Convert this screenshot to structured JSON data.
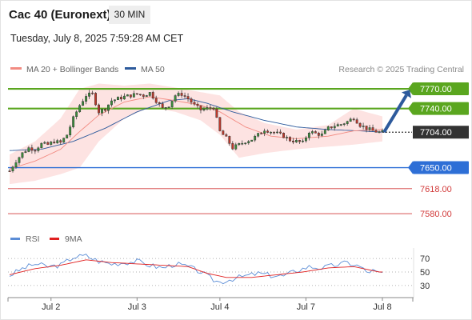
{
  "header": {
    "instrument": "Cac 40 (Euronext)",
    "timeframe": "30 MIN",
    "datetime": "Tuesday, July 8, 2025 7:59:28 AM CET"
  },
  "legend": {
    "items": [
      {
        "label": "MA 20 + Bollinger Bands",
        "color": "#f28b82"
      },
      {
        "label": "MA 50",
        "color": "#2d5a9c"
      }
    ],
    "credit": "Research © 2025 Trading Central"
  },
  "chart_data": [
    {
      "type": "candlestick",
      "y_range": [
        7552,
        7792
      ],
      "x_labels": [
        "Jul 2",
        "Jul 3",
        "Jul 4",
        "Jul 7",
        "Jul 8"
      ],
      "current_price": {
        "value": 7704,
        "label": "7704.00"
      },
      "levels": [
        {
          "value": 7770,
          "label": "7770.00",
          "kind": "resistance",
          "color": "#5aa61f"
        },
        {
          "value": 7740,
          "label": "7740.00",
          "kind": "resistance",
          "color": "#5aa61f"
        },
        {
          "value": 7650,
          "label": "7650.00",
          "kind": "pivot",
          "color": "#2e6fd6"
        },
        {
          "value": 7618,
          "label": "7618.00",
          "kind": "support",
          "color": "#d23b3b"
        },
        {
          "value": 7580,
          "label": "7580.00",
          "kind": "support",
          "color": "#d23b3b"
        }
      ],
      "forecast_arrow": {
        "from": 7704,
        "to": 7770,
        "color": "#2d5a9c"
      },
      "close_path": [
        [
          0,
          7645
        ],
        [
          2,
          7660
        ],
        [
          4,
          7672
        ],
        [
          6,
          7680
        ],
        [
          8,
          7678
        ],
        [
          10,
          7686
        ],
        [
          12,
          7685
        ],
        [
          14,
          7690
        ],
        [
          16,
          7688
        ],
        [
          18,
          7700
        ],
        [
          20,
          7725
        ],
        [
          22,
          7745
        ],
        [
          24,
          7760
        ],
        [
          26,
          7762
        ],
        [
          28,
          7735
        ],
        [
          30,
          7740
        ],
        [
          32,
          7752
        ],
        [
          34,
          7755
        ],
        [
          36,
          7758
        ],
        [
          38,
          7760
        ],
        [
          40,
          7762
        ],
        [
          42,
          7760
        ],
        [
          44,
          7764
        ],
        [
          46,
          7752
        ],
        [
          48,
          7740
        ],
        [
          50,
          7745
        ],
        [
          52,
          7760
        ],
        [
          54,
          7762
        ],
        [
          56,
          7755
        ],
        [
          58,
          7745
        ],
        [
          60,
          7738
        ],
        [
          62,
          7740
        ],
        [
          64,
          7742
        ],
        [
          66,
          7705
        ],
        [
          68,
          7695
        ],
        [
          70,
          7680
        ],
        [
          72,
          7685
        ],
        [
          74,
          7690
        ],
        [
          76,
          7693
        ],
        [
          78,
          7700
        ],
        [
          80,
          7708
        ],
        [
          82,
          7705
        ],
        [
          84,
          7702
        ],
        [
          86,
          7698
        ],
        [
          88,
          7692
        ],
        [
          90,
          7690
        ],
        [
          92,
          7688
        ],
        [
          94,
          7705
        ],
        [
          96,
          7702
        ],
        [
          98,
          7700
        ],
        [
          100,
          7710
        ],
        [
          102,
          7714
        ],
        [
          104,
          7716
        ],
        [
          106,
          7720
        ],
        [
          108,
          7726
        ],
        [
          110,
          7715
        ],
        [
          112,
          7710
        ],
        [
          114,
          7706
        ],
        [
          116,
          7704
        ]
      ],
      "bars": 118,
      "ma50": [
        [
          0,
          7676
        ],
        [
          10,
          7678
        ],
        [
          20,
          7690
        ],
        [
          30,
          7710
        ],
        [
          40,
          7735
        ],
        [
          50,
          7752
        ],
        [
          56,
          7755
        ],
        [
          62,
          7748
        ],
        [
          70,
          7735
        ],
        [
          80,
          7722
        ],
        [
          90,
          7712
        ],
        [
          100,
          7708
        ],
        [
          110,
          7706
        ],
        [
          117,
          7704
        ]
      ],
      "ma20": [
        [
          0,
          7648
        ],
        [
          8,
          7660
        ],
        [
          16,
          7678
        ],
        [
          22,
          7705
        ],
        [
          28,
          7730
        ],
        [
          36,
          7750
        ],
        [
          44,
          7758
        ],
        [
          52,
          7752
        ],
        [
          60,
          7745
        ],
        [
          66,
          7735
        ],
        [
          74,
          7712
        ],
        [
          82,
          7698
        ],
        [
          90,
          7694
        ],
        [
          100,
          7698
        ],
        [
          108,
          7706
        ],
        [
          117,
          7708
        ]
      ],
      "boll_upper": [
        [
          0,
          7670
        ],
        [
          8,
          7690
        ],
        [
          16,
          7725
        ],
        [
          22,
          7770
        ],
        [
          28,
          7778
        ],
        [
          36,
          7775
        ],
        [
          44,
          7778
        ],
        [
          52,
          7772
        ],
        [
          60,
          7765
        ],
        [
          66,
          7760
        ],
        [
          72,
          7735
        ],
        [
          80,
          7718
        ],
        [
          90,
          7708
        ],
        [
          100,
          7715
        ],
        [
          108,
          7740
        ],
        [
          117,
          7728
        ]
      ],
      "boll_lower": [
        [
          0,
          7625
        ],
        [
          8,
          7630
        ],
        [
          16,
          7640
        ],
        [
          22,
          7650
        ],
        [
          28,
          7690
        ],
        [
          36,
          7725
        ],
        [
          44,
          7742
        ],
        [
          52,
          7735
        ],
        [
          60,
          7722
        ],
        [
          66,
          7700
        ],
        [
          72,
          7665
        ],
        [
          80,
          7672
        ],
        [
          90,
          7678
        ],
        [
          100,
          7682
        ],
        [
          108,
          7685
        ],
        [
          117,
          7690
        ]
      ]
    },
    {
      "type": "line",
      "panel": "oscillator",
      "y_range": [
        18,
        82
      ],
      "y_ticks": [
        {
          "value": 70,
          "label": "70"
        },
        {
          "value": 50,
          "label": "50"
        },
        {
          "value": 30,
          "label": "30"
        }
      ],
      "legend": [
        {
          "label": "RSI",
          "color": "#5b8dd6"
        },
        {
          "label": "9MA",
          "color": "#e02020"
        }
      ],
      "rsi": [
        [
          0,
          45
        ],
        [
          4,
          55
        ],
        [
          8,
          62
        ],
        [
          12,
          58
        ],
        [
          16,
          60
        ],
        [
          20,
          72
        ],
        [
          24,
          74
        ],
        [
          28,
          66
        ],
        [
          32,
          62
        ],
        [
          36,
          64
        ],
        [
          40,
          66
        ],
        [
          44,
          60
        ],
        [
          48,
          56
        ],
        [
          52,
          62
        ],
        [
          56,
          58
        ],
        [
          60,
          50
        ],
        [
          64,
          38
        ],
        [
          66,
          35
        ],
        [
          70,
          40
        ],
        [
          74,
          44
        ],
        [
          78,
          48
        ],
        [
          82,
          45
        ],
        [
          86,
          44
        ],
        [
          90,
          52
        ],
        [
          94,
          58
        ],
        [
          98,
          56
        ],
        [
          102,
          60
        ],
        [
          106,
          64
        ],
        [
          110,
          58
        ],
        [
          112,
          50
        ],
        [
          114,
          52
        ],
        [
          116,
          48
        ]
      ],
      "ma9": [
        [
          0,
          46
        ],
        [
          8,
          55
        ],
        [
          16,
          60
        ],
        [
          24,
          68
        ],
        [
          32,
          64
        ],
        [
          40,
          62
        ],
        [
          48,
          60
        ],
        [
          56,
          58
        ],
        [
          62,
          48
        ],
        [
          68,
          42
        ],
        [
          76,
          42
        ],
        [
          84,
          46
        ],
        [
          92,
          50
        ],
        [
          100,
          56
        ],
        [
          108,
          58
        ],
        [
          116,
          50
        ]
      ]
    }
  ]
}
